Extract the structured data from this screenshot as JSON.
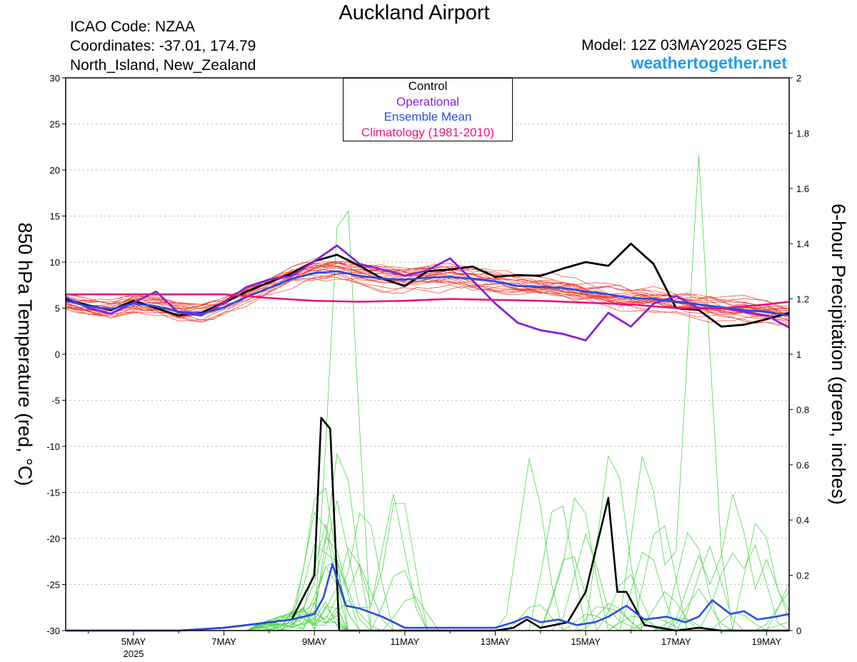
{
  "header": {
    "title": "Auckland Airport",
    "icao": "ICAO Code: NZAA",
    "coordinates": "Coordinates: -37.01, 174.79",
    "region": "North_Island, New_Zealand",
    "model": "Model: 12Z 03MAY2025 GEFS",
    "website": "weathertogether.net"
  },
  "chart_data": {
    "type": "line",
    "ylabel_left": "850 hPa Temperature (red, °C)",
    "ylabel_right": "6-hour Precipitation (green, inches)",
    "x_ticks": [
      "5MAY",
      "7MAY",
      "9MAY",
      "11MAY",
      "13MAY",
      "15MAY",
      "17MAY",
      "19MAY"
    ],
    "x_year_label": "2025",
    "x_range_days": [
      3.5,
      19.5
    ],
    "y_left_range": [
      -30,
      30
    ],
    "y_left_ticks": [
      "30",
      "25",
      "20",
      "15",
      "10",
      "5",
      "0",
      "-5",
      "-10",
      "-15",
      "-20",
      "-25",
      "-30"
    ],
    "y_right_range": [
      0,
      2
    ],
    "y_right_ticks": [
      "2",
      "1.8",
      "1.6",
      "1.4",
      "1.2",
      "1",
      "0.8",
      "0.6",
      "0.4",
      "0.2",
      "0"
    ],
    "grid": true,
    "legend": {
      "placement": "top-center",
      "entries": [
        {
          "label": "Control",
          "color": "#000000"
        },
        {
          "label": "Operational",
          "color": "#8a1fd6"
        },
        {
          "label": "Ensemble Mean",
          "color": "#2a4be8"
        },
        {
          "label": "Climatology (1981-2010)",
          "color": "#e8157e"
        }
      ]
    },
    "colors": {
      "members_temp": "#ef3b2c",
      "members_precip": "#4dd44d",
      "control": "#000000",
      "operational": "#8a1fd6",
      "mean": "#2a4be8",
      "climatology": "#e8157e"
    },
    "temperature_series": [
      {
        "name": "Control",
        "x": [
          3.5,
          4,
          4.5,
          5,
          5.5,
          6,
          6.5,
          7,
          7.5,
          8,
          8.5,
          9,
          9.5,
          10,
          10.5,
          11,
          11.5,
          12,
          12.5,
          13,
          13.5,
          14,
          14.5,
          15,
          15.5,
          16,
          16.5,
          17,
          17.5,
          18,
          18.5,
          19,
          19.5
        ],
        "y": [
          6,
          5.3,
          4.8,
          5.8,
          5,
          4.2,
          4.5,
          5.6,
          6.8,
          7.8,
          8.8,
          10.1,
          10.8,
          9.6,
          8.2,
          7.4,
          9,
          9.2,
          9.5,
          8.4,
          8.6,
          8.5,
          9.3,
          10,
          9.6,
          12,
          9.8,
          5,
          4.8,
          3,
          3.2,
          3.8,
          4.5
        ]
      },
      {
        "name": "Operational",
        "x": [
          3.5,
          4,
          4.5,
          5,
          5.5,
          6,
          6.5,
          7,
          7.5,
          8,
          8.5,
          9,
          9.5,
          10,
          10.5,
          11,
          11.5,
          12,
          12.5,
          13,
          13.5,
          14,
          14.5,
          15,
          15.5,
          16,
          16.5,
          17,
          17.5,
          18,
          18.5,
          19,
          19.5
        ],
        "y": [
          6.2,
          5,
          4.4,
          5.6,
          6.8,
          4.5,
          4.2,
          5.6,
          7.3,
          8.1,
          8.5,
          10.1,
          11.8,
          9.8,
          9.2,
          8.5,
          9.1,
          10.4,
          8,
          5.5,
          3.4,
          2.6,
          2.2,
          1.5,
          4.5,
          3,
          5.5,
          6.3,
          5,
          5,
          4.6,
          4.2,
          2.9
        ]
      },
      {
        "name": "Ensemble Mean",
        "x": [
          3.5,
          4,
          4.5,
          5,
          5.5,
          6,
          6.5,
          7,
          7.5,
          8,
          8.5,
          9,
          9.5,
          10,
          10.5,
          11,
          11.5,
          12,
          12.5,
          13,
          13.5,
          14,
          14.5,
          15,
          15.5,
          16,
          16.5,
          17,
          17.5,
          18,
          18.5,
          19,
          19.5
        ],
        "y": [
          5.8,
          5.2,
          4.9,
          5.5,
          5.2,
          4.6,
          4.4,
          5.1,
          6.2,
          7.2,
          8.2,
          8.8,
          9,
          8.5,
          8.2,
          8.1,
          8.3,
          8.4,
          8.2,
          7.9,
          7.4,
          7.3,
          7.2,
          6.8,
          6.5,
          6.1,
          6,
          5.7,
          5.4,
          5.1,
          4.8,
          4.6,
          4.2
        ]
      },
      {
        "name": "Climatology (1981-2010)",
        "x": [
          3.5,
          5,
          7,
          8,
          9,
          10,
          11,
          12,
          13,
          14,
          15,
          16,
          17,
          18,
          19,
          19.5
        ],
        "y": [
          6.5,
          6.5,
          6.5,
          6.1,
          5.8,
          5.7,
          5.8,
          6,
          5.9,
          5.8,
          5.6,
          5.4,
          5,
          5,
          5.4,
          5.7
        ]
      }
    ],
    "precipitation_series": [
      {
        "name": "Control",
        "x": [
          3.5,
          6,
          7,
          7.5,
          8,
          8.5,
          9,
          9.15,
          9.35,
          9.55,
          9.75,
          13,
          13.4,
          13.7,
          14,
          14.3,
          14.6,
          15,
          15.5,
          15.7,
          15.9,
          16.3,
          17,
          17.5,
          18,
          19,
          19.5
        ],
        "y": [
          0,
          0,
          0.01,
          0.02,
          0.03,
          0.04,
          0.2,
          0.77,
          0.73,
          0,
          0,
          0,
          0.01,
          0.04,
          0.01,
          0.02,
          0.03,
          0.14,
          0.48,
          0.14,
          0.14,
          0.02,
          0,
          0.01,
          0,
          0,
          0
        ]
      },
      {
        "name": "Ensemble Mean",
        "x": [
          3.5,
          6,
          7,
          7.5,
          8,
          8.5,
          9,
          9.2,
          9.4,
          9.7,
          10,
          10.5,
          11,
          13,
          13.4,
          13.7,
          14,
          14.4,
          14.8,
          15.2,
          15.5,
          15.9,
          16.3,
          16.8,
          17.2,
          17.5,
          17.8,
          18.2,
          18.5,
          18.8,
          19.2,
          19.5
        ],
        "y": [
          0,
          0,
          0.01,
          0.02,
          0.03,
          0.04,
          0.06,
          0.12,
          0.24,
          0.09,
          0.08,
          0.05,
          0.01,
          0.01,
          0.03,
          0.05,
          0.03,
          0.04,
          0.02,
          0.03,
          0.05,
          0.09,
          0.04,
          0.05,
          0.03,
          0.05,
          0.11,
          0.06,
          0.07,
          0.04,
          0.05,
          0.06
        ]
      }
    ],
    "annotations": []
  }
}
